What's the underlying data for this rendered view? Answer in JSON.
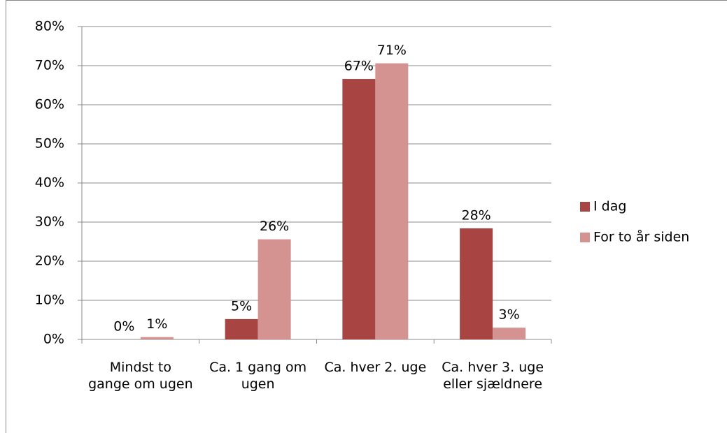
{
  "chart_data": {
    "type": "bar",
    "categories": [
      "Mindst to gange om ugen",
      "Ca. 1 gang om ugen",
      "Ca. hver 2. uge",
      "Ca. hver 3. uge eller sjældnere"
    ],
    "series": [
      {
        "name": "I dag",
        "color": "#a84543",
        "values": [
          0,
          5.2,
          66.6,
          28.4
        ],
        "value_labels": [
          "0%",
          "5%",
          "67%",
          "28%"
        ]
      },
      {
        "name": "For to år siden",
        "color": "#d49290",
        "values": [
          0.6,
          25.6,
          70.6,
          3.0
        ],
        "value_labels": [
          "1%",
          "26%",
          "71%",
          "3%"
        ]
      }
    ],
    "ylim": [
      0,
      80
    ],
    "yticks": [
      {
        "value": 0,
        "label": "0%"
      },
      {
        "value": 10,
        "label": "10%"
      },
      {
        "value": 20,
        "label": "20%"
      },
      {
        "value": 30,
        "label": "30%"
      },
      {
        "value": 40,
        "label": "40%"
      },
      {
        "value": 50,
        "label": "50%"
      },
      {
        "value": 60,
        "label": "60%"
      },
      {
        "value": 70,
        "label": "70%"
      },
      {
        "value": 80,
        "label": "80%"
      }
    ],
    "grid": true,
    "legend": "right"
  }
}
